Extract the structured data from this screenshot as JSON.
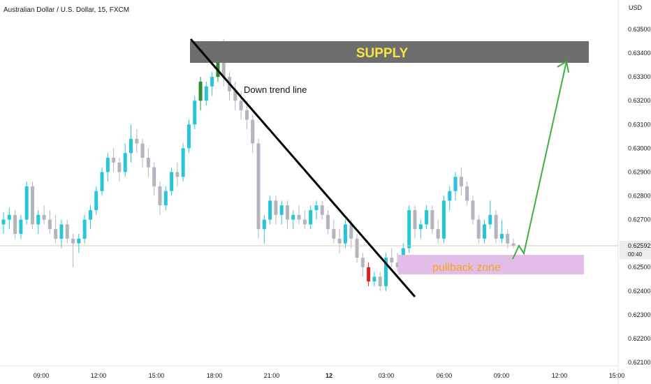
{
  "header": {
    "symbol_title": "Australian Dollar / U.S. Dollar, 15, FXCM",
    "currency": "USD"
  },
  "price_scale": {
    "ticks": [
      "0.63500",
      "0.63400",
      "0.63300",
      "0.63200",
      "0.63100",
      "0.63000",
      "0.62900",
      "0.62800",
      "0.62700",
      "0.62500",
      "0.62400",
      "0.62300",
      "0.62200",
      "0.62100"
    ],
    "tick_values": [
      0.635,
      0.634,
      0.633,
      0.632,
      0.631,
      0.63,
      0.629,
      0.628,
      0.627,
      0.625,
      0.624,
      0.623,
      0.622,
      0.621
    ],
    "current_price": "0.62592",
    "countdown": "00:40"
  },
  "time_scale": {
    "labels": [
      "09:00",
      "12:00",
      "15:00",
      "18:00",
      "21:00",
      "12",
      "03:00",
      "06:00",
      "09:00",
      "12:00",
      "15:00"
    ],
    "bold_label": "12"
  },
  "annotations": {
    "supply_label": "SUPPLY",
    "trend_label": "Down trend line",
    "pullback_label": "pullback zone"
  },
  "colors": {
    "bull": "#26c6da",
    "bear": "#b2b5be",
    "highlight_bull": "#2e8b2e",
    "highlight_bear": "#e01e1e",
    "supply_fill": "#6e6e6e",
    "supply_text": "#f5e642",
    "pullback_fill": "#e1bde8",
    "pullback_text": "#f5a623",
    "arrow": "#3cb043",
    "price_line": "#d8cfa8"
  },
  "chart_data": {
    "type": "candlestick",
    "title": "Australian Dollar / U.S. Dollar, 15, FXCM",
    "y_unit": "USD",
    "ylim": [
      0.6205,
      0.6356
    ],
    "supply_zone": [
      0.63365,
      0.63455
    ],
    "pullback_zone": [
      0.62468,
      0.62562
    ],
    "current_price": 0.62592,
    "candles": [
      [
        0.6268,
        0.6273,
        0.6264,
        0.627
      ],
      [
        0.627,
        0.6275,
        0.6266,
        0.6272
      ],
      [
        0.6272,
        0.6274,
        0.6262,
        0.6264
      ],
      [
        0.6264,
        0.6272,
        0.6262,
        0.627
      ],
      [
        0.627,
        0.6286,
        0.6268,
        0.6284
      ],
      [
        0.6284,
        0.6286,
        0.6266,
        0.6268
      ],
      [
        0.6268,
        0.6274,
        0.6264,
        0.6272
      ],
      [
        0.6272,
        0.6276,
        0.6268,
        0.627
      ],
      [
        0.627,
        0.6274,
        0.6264,
        0.6266
      ],
      [
        0.6266,
        0.6272,
        0.626,
        0.6262
      ],
      [
        0.6262,
        0.627,
        0.6258,
        0.6268
      ],
      [
        0.6268,
        0.627,
        0.626,
        0.6262
      ],
      [
        0.6262,
        0.6264,
        0.625,
        0.626
      ],
      [
        0.626,
        0.6264,
        0.6256,
        0.6262
      ],
      [
        0.6262,
        0.6272,
        0.626,
        0.627
      ],
      [
        0.627,
        0.6276,
        0.6266,
        0.6274
      ],
      [
        0.6274,
        0.6284,
        0.6272,
        0.6282
      ],
      [
        0.6282,
        0.6292,
        0.628,
        0.629
      ],
      [
        0.629,
        0.6298,
        0.6286,
        0.6296
      ],
      [
        0.6296,
        0.63,
        0.629,
        0.6294
      ],
      [
        0.6294,
        0.6296,
        0.6286,
        0.629
      ],
      [
        0.629,
        0.6302,
        0.6288,
        0.6298
      ],
      [
        0.6298,
        0.631,
        0.6294,
        0.6304
      ],
      [
        0.6304,
        0.6308,
        0.6298,
        0.6302
      ],
      [
        0.6302,
        0.6304,
        0.6292,
        0.6296
      ],
      [
        0.6296,
        0.63,
        0.6288,
        0.6292
      ],
      [
        0.6292,
        0.6294,
        0.628,
        0.6284
      ],
      [
        0.6284,
        0.6286,
        0.6272,
        0.6276
      ],
      [
        0.6276,
        0.6284,
        0.6274,
        0.6282
      ],
      [
        0.6282,
        0.6292,
        0.628,
        0.629
      ],
      [
        0.629,
        0.6294,
        0.6284,
        0.6288
      ],
      [
        0.6288,
        0.6302,
        0.6286,
        0.63
      ],
      [
        0.63,
        0.6312,
        0.6298,
        0.631
      ],
      [
        0.631,
        0.6322,
        0.6308,
        0.632
      ],
      [
        0.632,
        0.633,
        0.6316,
        0.6328
      ],
      [
        0.632,
        0.6328,
        0.6318,
        0.6326
      ],
      [
        0.6326,
        0.6332,
        0.6322,
        0.633
      ],
      [
        0.633,
        0.6342,
        0.6328,
        0.6338
      ],
      [
        0.6338,
        0.6346,
        0.6326,
        0.633
      ],
      [
        0.633,
        0.6332,
        0.632,
        0.6324
      ],
      [
        0.6324,
        0.6328,
        0.6316,
        0.632
      ],
      [
        0.632,
        0.6324,
        0.6312,
        0.6316
      ],
      [
        0.6316,
        0.632,
        0.6308,
        0.6312
      ],
      [
        0.6312,
        0.6314,
        0.6298,
        0.6302
      ],
      [
        0.6302,
        0.6304,
        0.6262,
        0.6266
      ],
      [
        0.6266,
        0.6272,
        0.626,
        0.627
      ],
      [
        0.627,
        0.628,
        0.6268,
        0.6278
      ],
      [
        0.6278,
        0.628,
        0.6268,
        0.6272
      ],
      [
        0.6272,
        0.6278,
        0.6268,
        0.6276
      ],
      [
        0.6276,
        0.6278,
        0.6266,
        0.627
      ],
      [
        0.627,
        0.6274,
        0.6266,
        0.6272
      ],
      [
        0.6272,
        0.6276,
        0.6268,
        0.627
      ],
      [
        0.627,
        0.6274,
        0.6266,
        0.6268
      ],
      [
        0.6268,
        0.6276,
        0.6266,
        0.6274
      ],
      [
        0.6274,
        0.6278,
        0.627,
        0.6276
      ],
      [
        0.6276,
        0.6278,
        0.627,
        0.6272
      ],
      [
        0.6272,
        0.6274,
        0.6264,
        0.6266
      ],
      [
        0.6266,
        0.627,
        0.626,
        0.6262
      ],
      [
        0.6262,
        0.6266,
        0.6256,
        0.626
      ],
      [
        0.626,
        0.627,
        0.6258,
        0.6268
      ],
      [
        0.6268,
        0.627,
        0.6258,
        0.6262
      ],
      [
        0.6262,
        0.6264,
        0.6252,
        0.6254
      ],
      [
        0.6254,
        0.6256,
        0.6246,
        0.625
      ],
      [
        0.625,
        0.6252,
        0.6242,
        0.6244
      ],
      [
        0.6244,
        0.6248,
        0.6242,
        0.6246
      ],
      [
        0.6246,
        0.6248,
        0.624,
        0.6242
      ],
      [
        0.6242,
        0.6256,
        0.624,
        0.6254
      ],
      [
        0.6254,
        0.6258,
        0.625,
        0.6252
      ],
      [
        0.6252,
        0.6256,
        0.6248,
        0.625
      ],
      [
        0.625,
        0.626,
        0.6248,
        0.6258
      ],
      [
        0.6258,
        0.6276,
        0.6256,
        0.6274
      ],
      [
        0.6274,
        0.6276,
        0.6262,
        0.6266
      ],
      [
        0.6266,
        0.627,
        0.6262,
        0.6268
      ],
      [
        0.6268,
        0.6276,
        0.6266,
        0.6274
      ],
      [
        0.6274,
        0.6276,
        0.6264,
        0.6266
      ],
      [
        0.6266,
        0.627,
        0.626,
        0.6262
      ],
      [
        0.6262,
        0.628,
        0.626,
        0.6278
      ],
      [
        0.6278,
        0.6284,
        0.6274,
        0.6282
      ],
      [
        0.6282,
        0.629,
        0.6278,
        0.6288
      ],
      [
        0.6288,
        0.6292,
        0.628,
        0.6284
      ],
      [
        0.6284,
        0.6286,
        0.6276,
        0.6278
      ],
      [
        0.6278,
        0.628,
        0.6268,
        0.627
      ],
      [
        0.627,
        0.6272,
        0.626,
        0.6262
      ],
      [
        0.6262,
        0.627,
        0.626,
        0.6268
      ],
      [
        0.6268,
        0.6278,
        0.6266,
        0.6272
      ],
      [
        0.6272,
        0.6274,
        0.626,
        0.6262
      ],
      [
        0.6262,
        0.627,
        0.626,
        0.6264
      ],
      [
        0.6264,
        0.6266,
        0.6258,
        0.626
      ],
      [
        0.626,
        0.6262,
        0.6258,
        0.6259
      ]
    ]
  }
}
